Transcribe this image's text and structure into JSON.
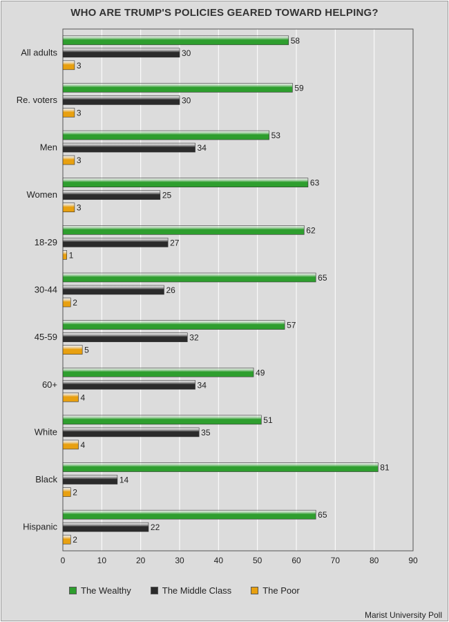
{
  "chart_data": {
    "type": "bar",
    "orientation": "horizontal",
    "title": "WHO ARE TRUMP'S POLICIES GEARED TOWARD HELPING?",
    "categories": [
      "All adults",
      "Re. voters",
      "Men",
      "Women",
      "18-29",
      "30-44",
      "45-59",
      "60+",
      "White",
      "Black",
      "Hispanic"
    ],
    "series": [
      {
        "name": "The Wealthy",
        "color": "#2e9e2e",
        "values": [
          58,
          59,
          53,
          63,
          62,
          65,
          57,
          49,
          51,
          81,
          65
        ]
      },
      {
        "name": "The Middle Class",
        "color": "#2b2b2b",
        "values": [
          30,
          30,
          34,
          25,
          27,
          26,
          32,
          34,
          35,
          14,
          22
        ]
      },
      {
        "name": "The Poor",
        "color": "#e8a010",
        "values": [
          3,
          3,
          3,
          3,
          1,
          2,
          5,
          4,
          4,
          2,
          2
        ]
      }
    ],
    "xlim": [
      0,
      90
    ],
    "xticks": [
      0,
      10,
      20,
      30,
      40,
      50,
      60,
      70,
      80,
      90
    ],
    "grid": true,
    "legend_position": "bottom",
    "source": "Marist University Poll"
  }
}
